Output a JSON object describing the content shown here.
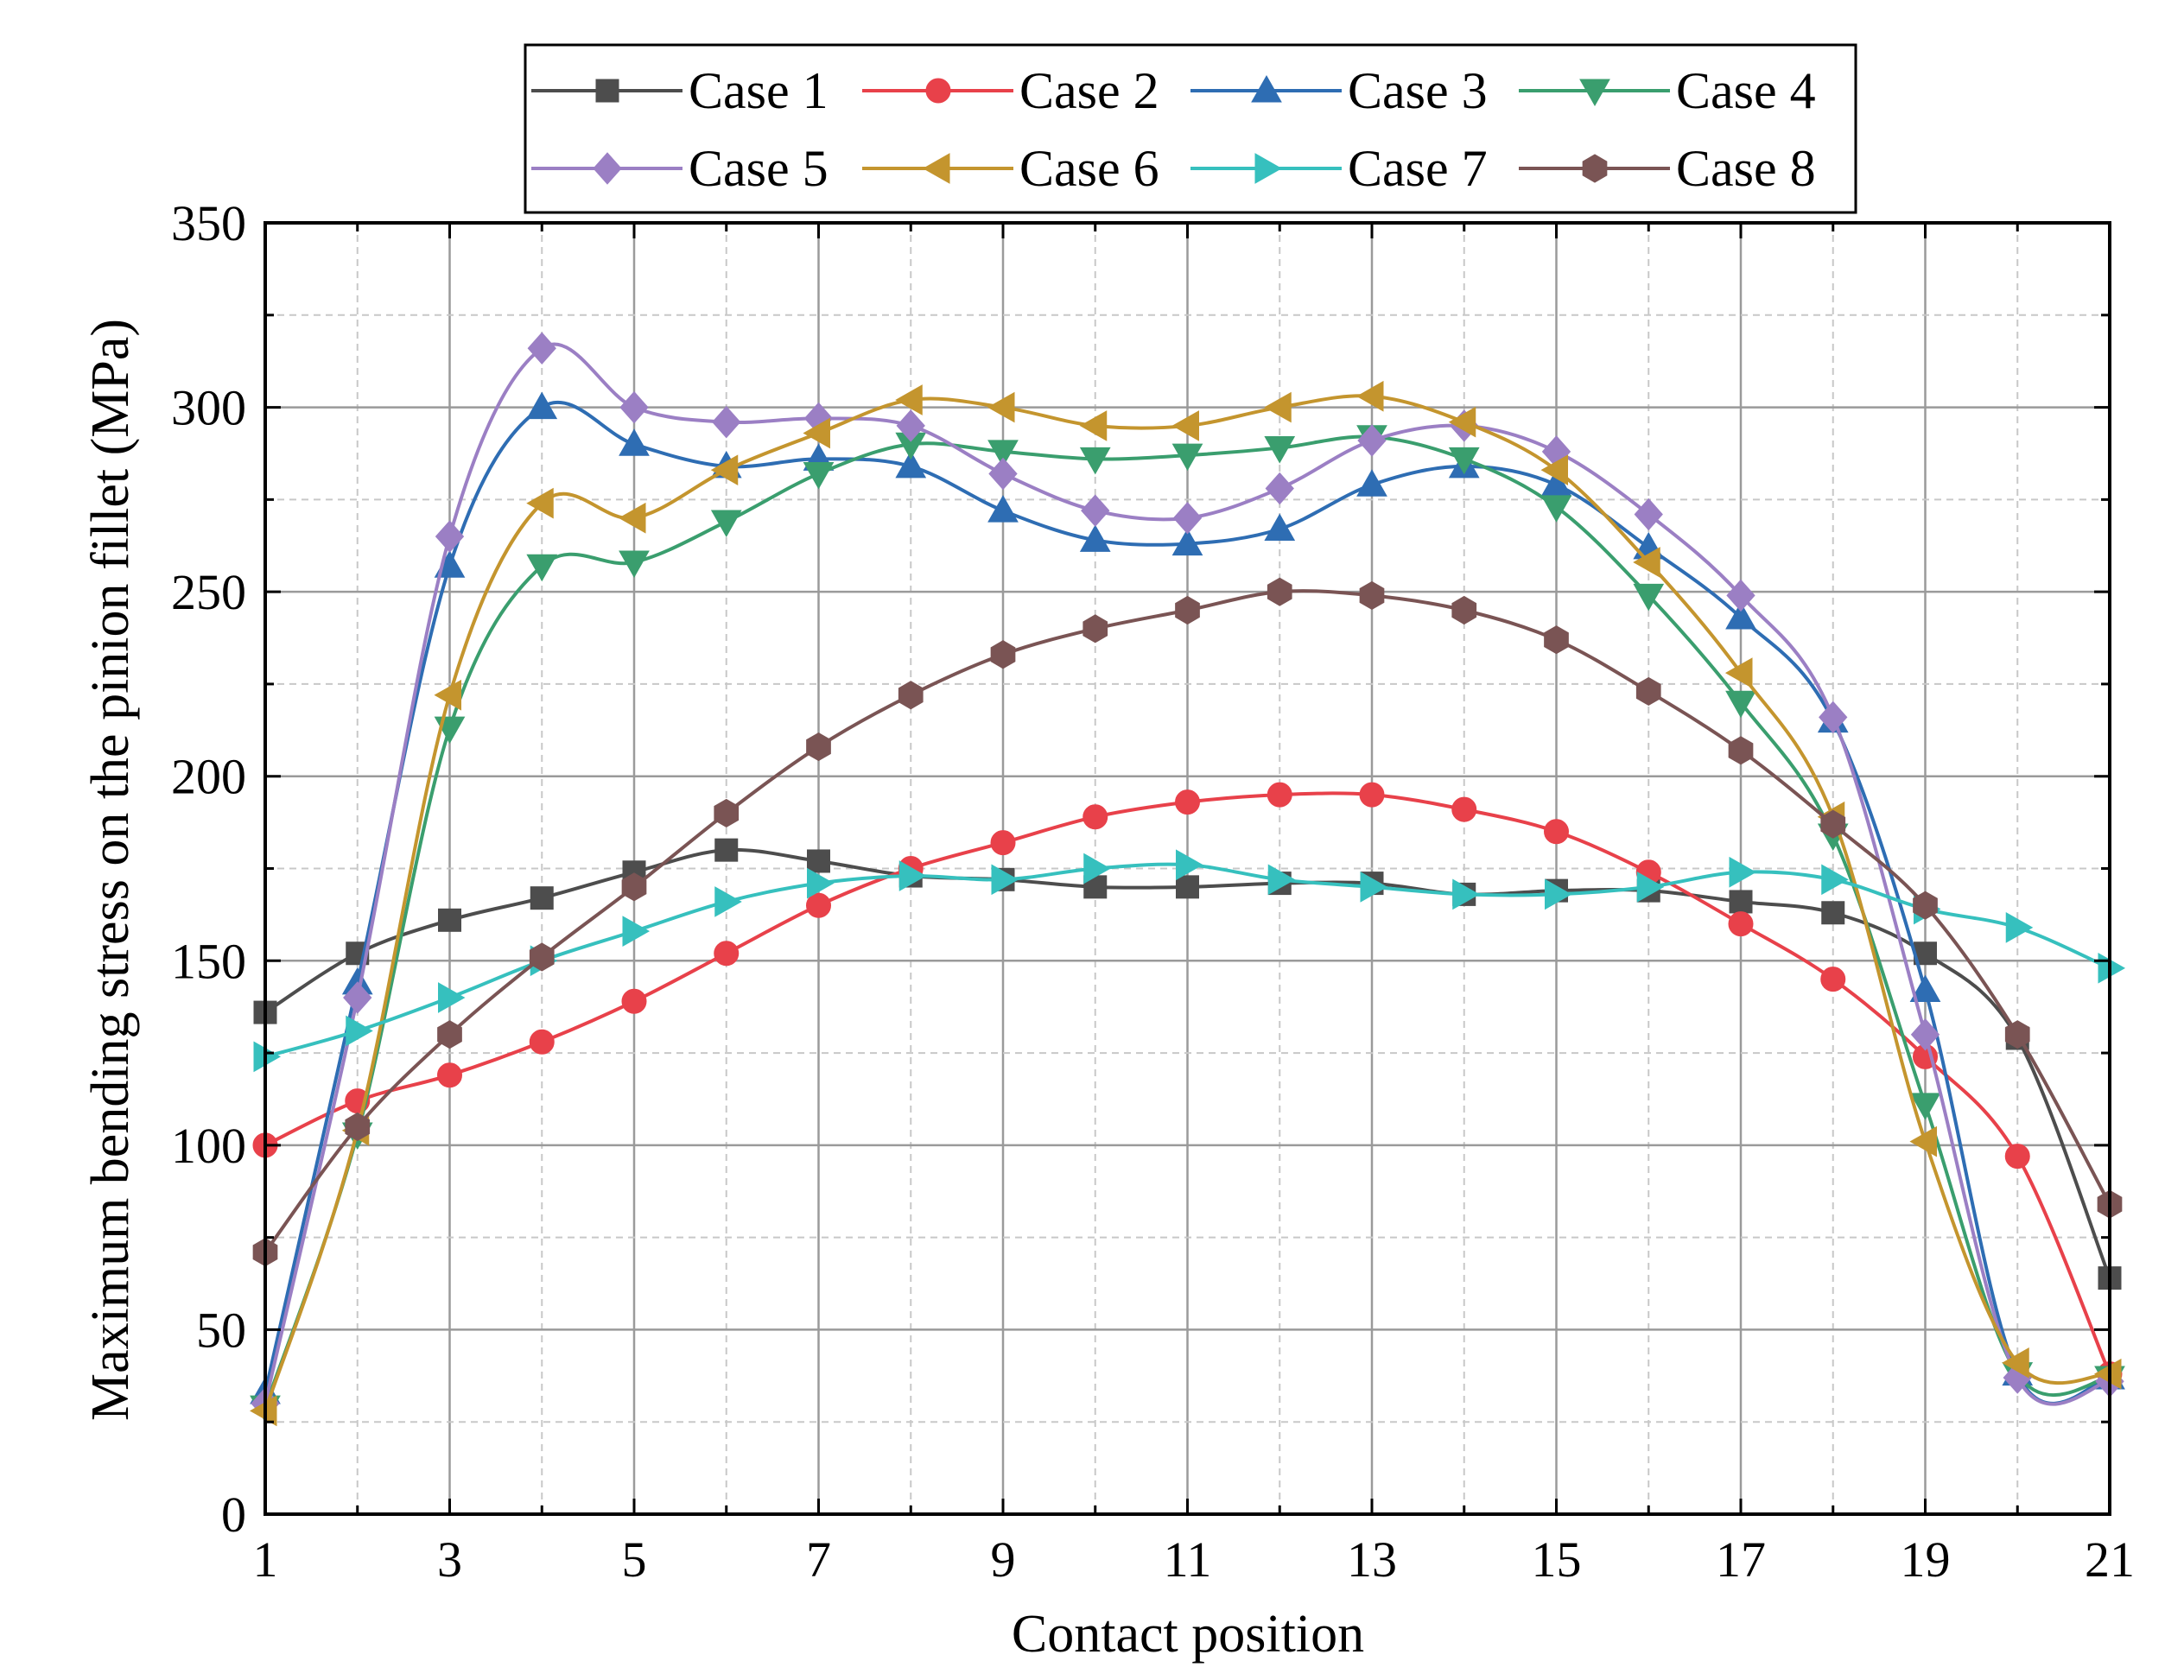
{
  "chart_data": {
    "type": "line",
    "title": "",
    "xlabel": "Contact position",
    "ylabel": "Maximum bending stress on the pinion fillet (MPa)",
    "xlim": [
      1,
      21
    ],
    "ylim": [
      0,
      350
    ],
    "xticks": [
      1,
      3,
      5,
      7,
      9,
      11,
      13,
      15,
      17,
      19,
      21
    ],
    "yticks": [
      0,
      50,
      100,
      150,
      200,
      250,
      300,
      350
    ],
    "grid": true,
    "legend_position": "top",
    "x": [
      1,
      2,
      3,
      4,
      5,
      6,
      7,
      8,
      9,
      10,
      11,
      12,
      13,
      14,
      15,
      16,
      17,
      18,
      19,
      20,
      21
    ],
    "series": [
      {
        "name": "Case 1",
        "color": "#4d4d4d",
        "marker": "square",
        "values": [
          136,
          152,
          161,
          167,
          174,
          180,
          177,
          173,
          172,
          170,
          170,
          171,
          171,
          168,
          169,
          169,
          166,
          163,
          152,
          129,
          64
        ]
      },
      {
        "name": "Case 2",
        "color": "#e8414a",
        "marker": "circle",
        "values": [
          100,
          112,
          119,
          128,
          139,
          152,
          165,
          175,
          182,
          189,
          193,
          195,
          195,
          191,
          185,
          174,
          160,
          145,
          124,
          97,
          38
        ]
      },
      {
        "name": "Case 3",
        "color": "#2e6db3",
        "marker": "triangle-up",
        "values": [
          33,
          144,
          257,
          300,
          290,
          284,
          286,
          284,
          272,
          264,
          263,
          267,
          279,
          284,
          279,
          262,
          243,
          215,
          142,
          38,
          37
        ]
      },
      {
        "name": "Case 4",
        "color": "#3a9e6e",
        "marker": "triangle-down",
        "values": [
          29,
          103,
          213,
          257,
          258,
          269,
          282,
          290,
          288,
          286,
          287,
          289,
          292,
          286,
          273,
          249,
          220,
          184,
          111,
          38,
          37
        ]
      },
      {
        "name": "Case 5",
        "color": "#9b7fc4",
        "marker": "diamond",
        "values": [
          30,
          140,
          265,
          316,
          300,
          296,
          297,
          295,
          282,
          272,
          270,
          278,
          291,
          295,
          288,
          271,
          249,
          216,
          130,
          37,
          36
        ]
      },
      {
        "name": "Case 6",
        "color": "#c4952e",
        "marker": "triangle-left",
        "values": [
          28,
          104,
          222,
          274,
          270,
          283,
          293,
          302,
          300,
          295,
          295,
          300,
          303,
          296,
          283,
          258,
          228,
          189,
          101,
          41,
          38
        ]
      },
      {
        "name": "Case 7",
        "color": "#36c0be",
        "marker": "triangle-right",
        "values": [
          124,
          131,
          140,
          150,
          158,
          166,
          171,
          173,
          172,
          175,
          176,
          172,
          170,
          168,
          168,
          170,
          174,
          172,
          164,
          159,
          148
        ]
      },
      {
        "name": "Case 8",
        "color": "#7a5454",
        "marker": "hexagon",
        "values": [
          71,
          105,
          130,
          151,
          170,
          190,
          208,
          222,
          233,
          240,
          245,
          250,
          249,
          245,
          237,
          223,
          207,
          187,
          165,
          130,
          84
        ]
      }
    ]
  }
}
